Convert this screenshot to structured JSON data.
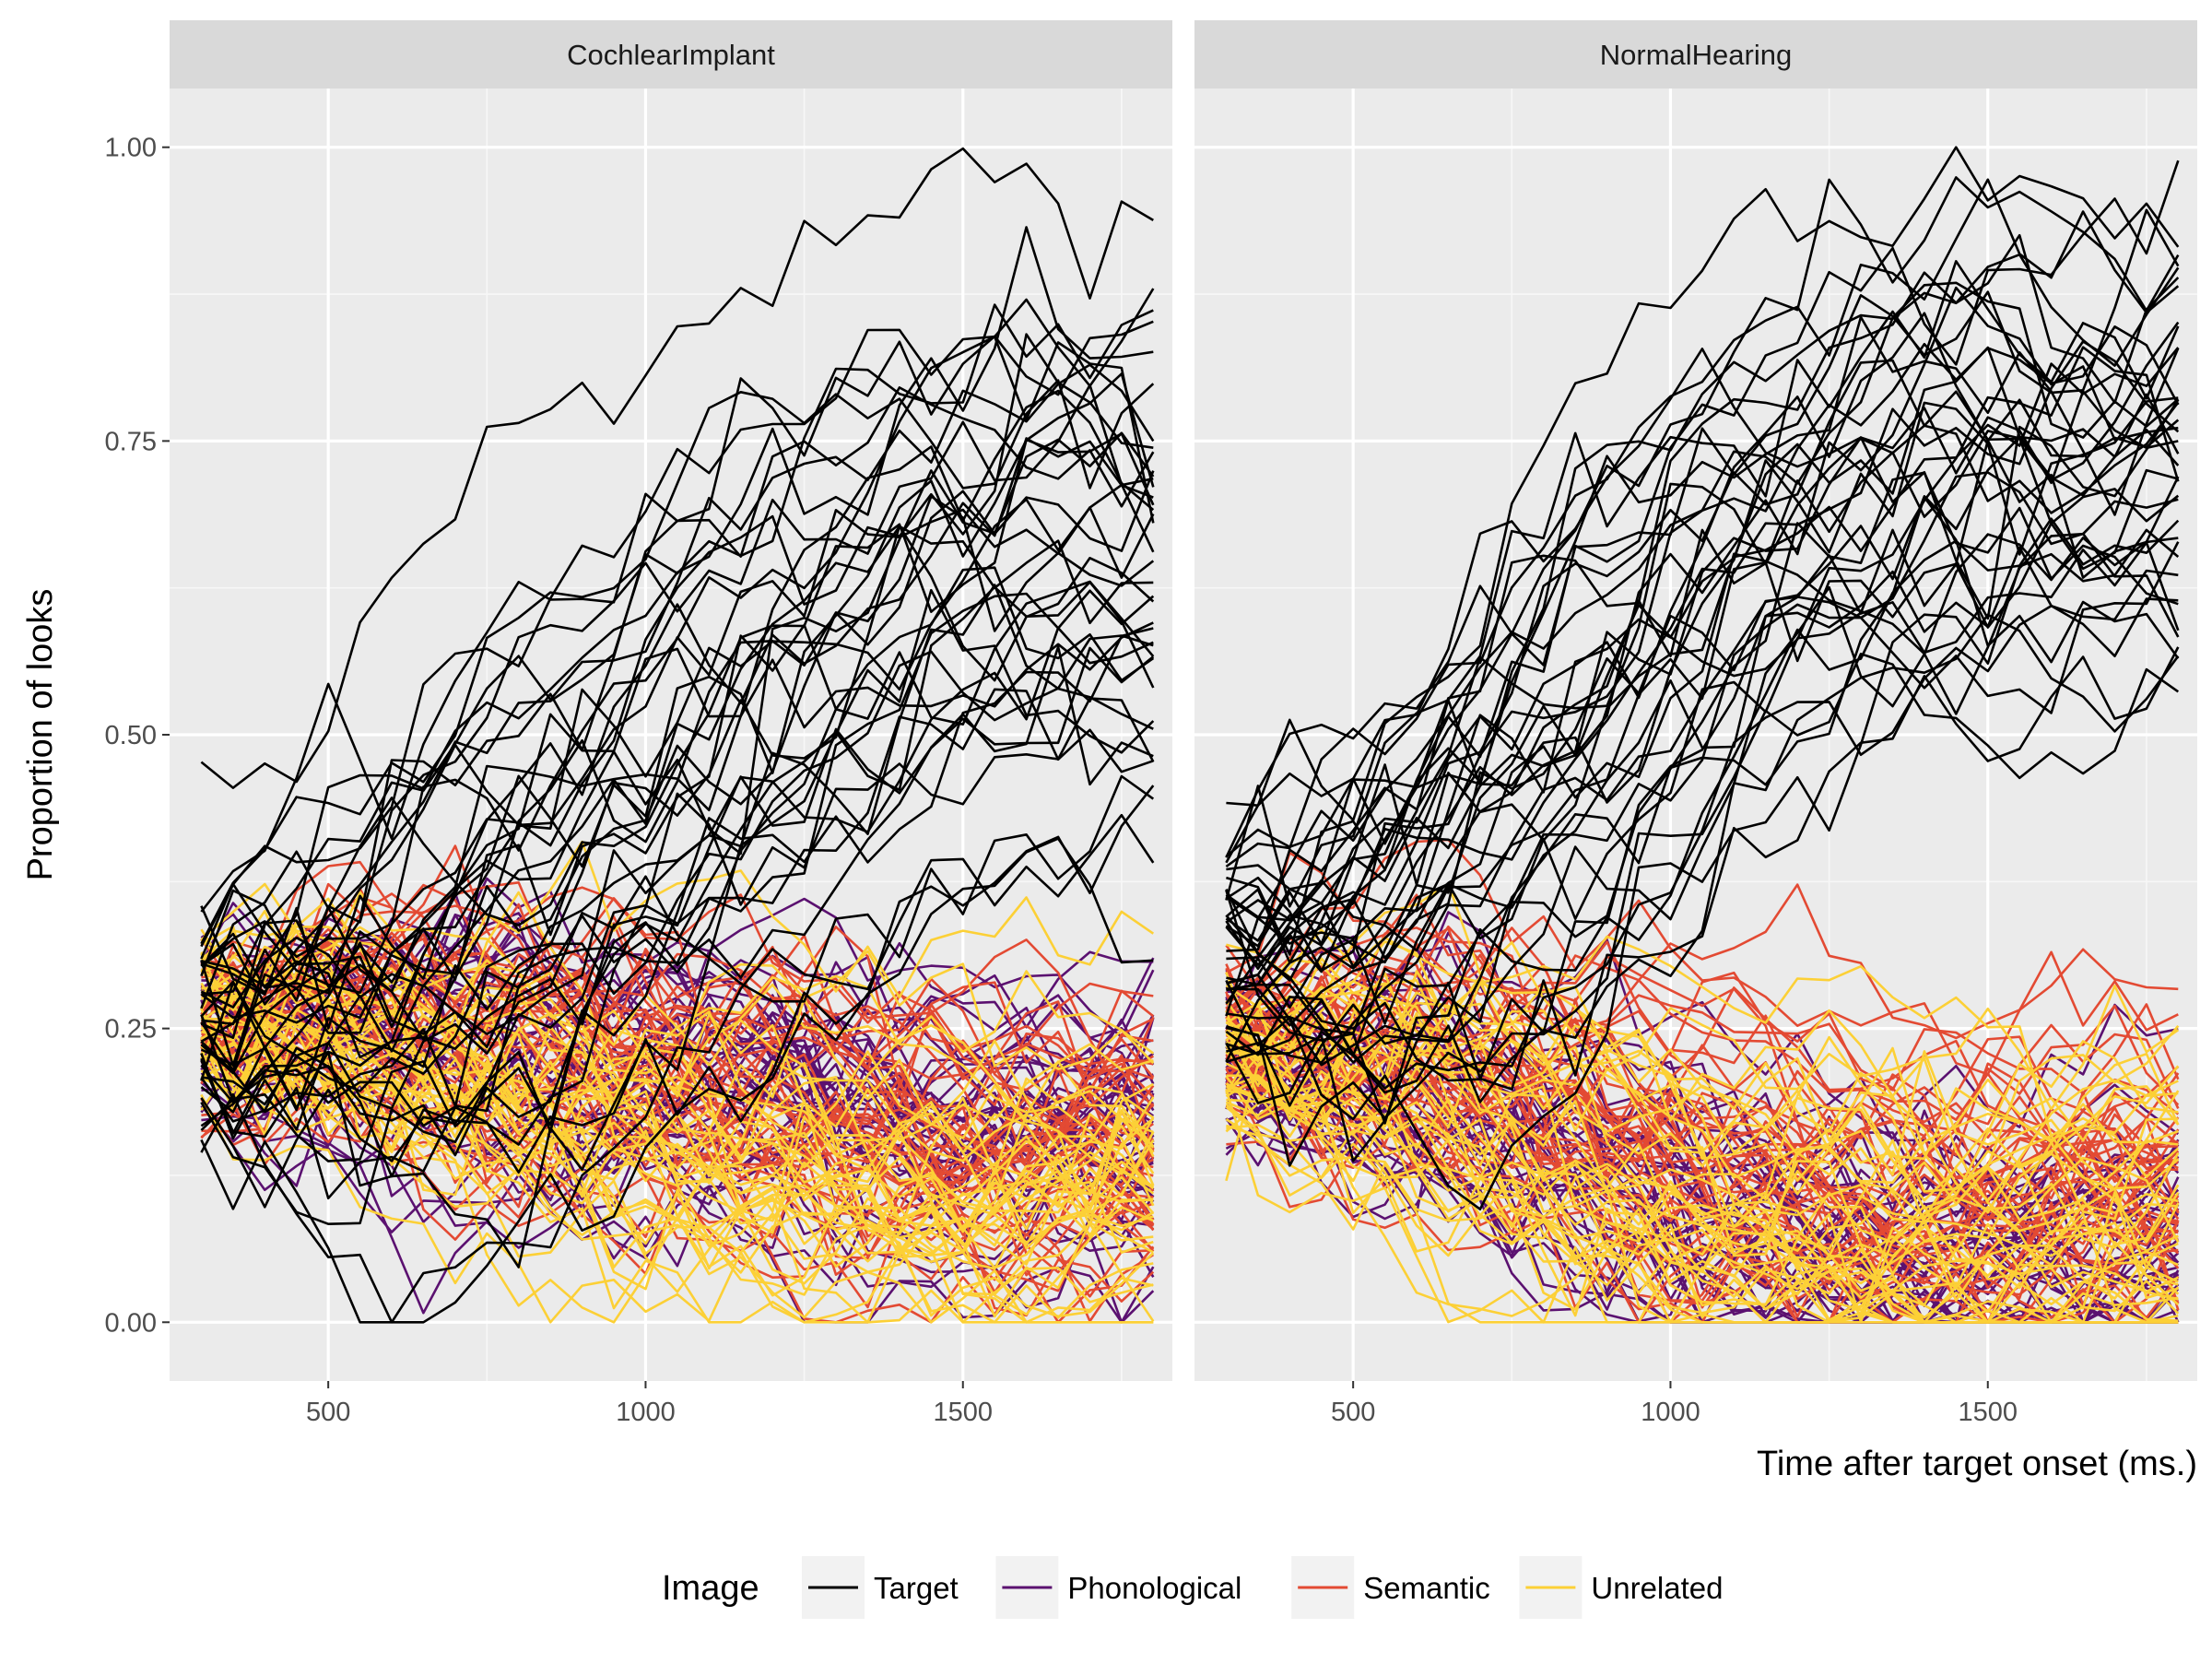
{
  "chart_data": {
    "type": "line",
    "ylabel": "Proportion of looks",
    "xlabel": "Time after target onset (ms.)",
    "xlim": [
      250,
      1830
    ],
    "ylim": [
      -0.05,
      1.05
    ],
    "x_ticks": [
      500,
      1000,
      1500
    ],
    "x_tick_labels": [
      "500",
      "1000",
      "1500"
    ],
    "y_ticks": [
      0,
      0.25,
      0.5,
      0.75,
      1.0
    ],
    "y_tick_labels": [
      "0.00",
      "0.25",
      "0.50",
      "0.75",
      "1.00"
    ],
    "grid": true,
    "x_range": [
      300,
      1800
    ],
    "time_step_ms": 50,
    "legend": {
      "title": "Image",
      "position": "bottom",
      "entries": [
        {
          "label": "Target",
          "color": "#000000"
        },
        {
          "label": "Phonological",
          "color": "#5b1170"
        },
        {
          "label": "Semantic",
          "color": "#e34a33"
        },
        {
          "label": "Unrelated",
          "color": "#fcd036"
        }
      ]
    },
    "panels": [
      {
        "strip": "CochlearImplant",
        "summary_curves": {
          "Target": {
            "x": [
              300,
              500,
              700,
              900,
              1100,
              1300,
              1500,
              1800
            ],
            "y": [
              0.25,
              0.27,
              0.32,
              0.4,
              0.5,
              0.58,
              0.63,
              0.66
            ]
          },
          "Phonological": {
            "x": [
              300,
              500,
              700,
              900,
              1100,
              1300,
              1500,
              1800
            ],
            "y": [
              0.24,
              0.24,
              0.22,
              0.2,
              0.19,
              0.17,
              0.16,
              0.15
            ]
          },
          "Semantic": {
            "x": [
              300,
              500,
              700,
              900,
              1100,
              1300,
              1500,
              1800
            ],
            "y": [
              0.25,
              0.26,
              0.24,
              0.22,
              0.19,
              0.17,
              0.15,
              0.14
            ]
          },
          "Unrelated": {
            "x": [
              300,
              500,
              700,
              900,
              1100,
              1300,
              1500,
              1800
            ],
            "y": [
              0.26,
              0.24,
              0.2,
              0.16,
              0.13,
              0.12,
              0.11,
              0.11
            ]
          }
        }
      },
      {
        "strip": "NormalHearing",
        "summary_curves": {
          "Target": {
            "x": [
              300,
              500,
              700,
              900,
              1100,
              1300,
              1500,
              1800
            ],
            "y": [
              0.3,
              0.35,
              0.42,
              0.54,
              0.65,
              0.72,
              0.76,
              0.74
            ]
          },
          "Phonological": {
            "x": [
              300,
              500,
              700,
              900,
              1100,
              1300,
              1500,
              1800
            ],
            "y": [
              0.23,
              0.21,
              0.18,
              0.12,
              0.08,
              0.06,
              0.05,
              0.06
            ]
          },
          "Semantic": {
            "x": [
              300,
              500,
              700,
              900,
              1100,
              1300,
              1500,
              1800
            ],
            "y": [
              0.24,
              0.22,
              0.2,
              0.16,
              0.13,
              0.11,
              0.11,
              0.12
            ]
          },
          "Unrelated": {
            "x": [
              300,
              500,
              700,
              900,
              1100,
              1300,
              1500,
              1800
            ],
            "y": [
              0.22,
              0.2,
              0.16,
              0.12,
              0.09,
              0.08,
              0.07,
              0.08
            ]
          }
        }
      }
    ]
  }
}
